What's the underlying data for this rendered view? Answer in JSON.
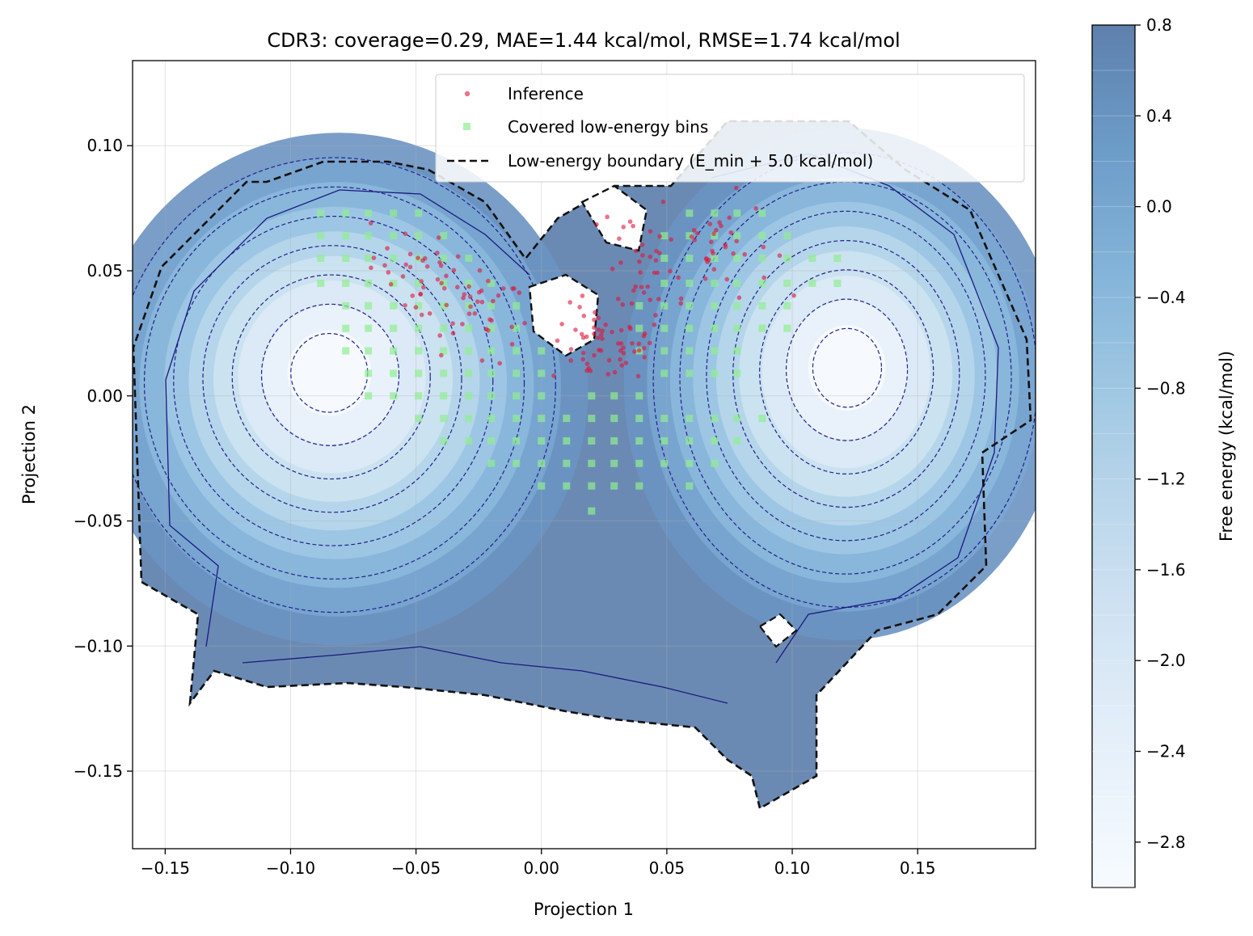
{
  "chart_data": {
    "type": "contour",
    "title": "CDR3: coverage=0.29, MAE=1.44 kcal/mol, RMSE=1.74 kcal/mol",
    "xlabel": "Projection 1",
    "ylabel": "Projection 2",
    "xlim": [
      -0.163,
      0.197
    ],
    "ylim": [
      -0.181,
      0.134
    ],
    "x_ticks": [
      -0.15,
      -0.1,
      -0.05,
      0.0,
      0.05,
      0.1,
      0.15
    ],
    "x_tick_labels": [
      "−0.15",
      "−0.10",
      "−0.05",
      "0.00",
      "0.05",
      "0.10",
      "0.15"
    ],
    "y_ticks": [
      0.1,
      0.05,
      0.0,
      -0.05,
      -0.1,
      -0.15
    ],
    "y_tick_labels": [
      "0.10",
      "0.05",
      "0.00",
      "−0.05",
      "−0.10",
      "−0.15"
    ],
    "grid": true,
    "legend_placement": "upper right",
    "legend": [
      {
        "label": "Inference",
        "marker": "dot",
        "color": "#dc143c"
      },
      {
        "label": "Covered low-energy bins",
        "marker": "square",
        "color": "#90ee90"
      },
      {
        "label": "Low-energy boundary (E_min + 5.0 kcal/mol)",
        "marker": "dashed-line",
        "color": "#000000"
      }
    ],
    "colorbar": {
      "label": "Free energy (kcal/mol)",
      "range": [
        -3.0,
        0.8
      ],
      "ticks": [
        0.8,
        0.4,
        0.0,
        -0.4,
        -0.8,
        -1.2,
        -1.6,
        -2.0,
        -2.4,
        -2.8
      ],
      "tick_labels": [
        "0.8",
        "0.4",
        "0.0",
        "−0.4",
        "−0.8",
        "−1.2",
        "−1.6",
        "−2.0",
        "−2.4",
        "−2.8"
      ],
      "colormap": "Blues"
    },
    "energy_basins": [
      {
        "center": [
          -0.085,
          0.01
        ],
        "min_energy": -3.0
      },
      {
        "center": [
          0.122,
          0.012
        ],
        "min_energy": -3.0
      }
    ],
    "inference_clusters": [
      {
        "center": [
          -0.035,
          0.04
        ],
        "spread": [
          0.016,
          0.01
        ],
        "count": 70
      },
      {
        "center": [
          0.022,
          0.02
        ],
        "spread": [
          0.009,
          0.008
        ],
        "count": 45
      },
      {
        "center": [
          0.038,
          0.045
        ],
        "spread": [
          0.007,
          0.022
        ],
        "count": 45
      },
      {
        "center": [
          0.068,
          0.06
        ],
        "spread": [
          0.012,
          0.01
        ],
        "count": 40
      }
    ],
    "covered_bins": {
      "x_step": 0.0098,
      "y_step": 0.0092,
      "points": [
        [
          -0.088,
          0.073
        ],
        [
          -0.078,
          0.073
        ],
        [
          -0.069,
          0.073
        ],
        [
          -0.059,
          0.073
        ],
        [
          -0.049,
          0.073
        ],
        [
          -0.088,
          0.064
        ],
        [
          -0.078,
          0.064
        ],
        [
          -0.069,
          0.064
        ],
        [
          -0.059,
          0.064
        ],
        [
          -0.049,
          0.064
        ],
        [
          -0.039,
          0.064
        ],
        [
          -0.088,
          0.055
        ],
        [
          -0.078,
          0.055
        ],
        [
          -0.069,
          0.055
        ],
        [
          -0.059,
          0.055
        ],
        [
          -0.049,
          0.055
        ],
        [
          -0.039,
          0.055
        ],
        [
          -0.029,
          0.055
        ],
        [
          -0.088,
          0.045
        ],
        [
          -0.078,
          0.045
        ],
        [
          -0.069,
          0.045
        ],
        [
          -0.059,
          0.045
        ],
        [
          -0.049,
          0.045
        ],
        [
          -0.039,
          0.045
        ],
        [
          -0.029,
          0.045
        ],
        [
          -0.02,
          0.045
        ],
        [
          -0.078,
          0.036
        ],
        [
          -0.069,
          0.036
        ],
        [
          -0.059,
          0.036
        ],
        [
          -0.049,
          0.036
        ],
        [
          -0.039,
          0.036
        ],
        [
          -0.029,
          0.036
        ],
        [
          -0.02,
          0.036
        ],
        [
          -0.01,
          0.036
        ],
        [
          -0.078,
          0.027
        ],
        [
          -0.069,
          0.027
        ],
        [
          -0.059,
          0.027
        ],
        [
          -0.049,
          0.027
        ],
        [
          -0.039,
          0.027
        ],
        [
          -0.029,
          0.027
        ],
        [
          -0.02,
          0.027
        ],
        [
          -0.01,
          0.027
        ],
        [
          -0.078,
          0.018
        ],
        [
          -0.069,
          0.018
        ],
        [
          -0.059,
          0.018
        ],
        [
          -0.049,
          0.018
        ],
        [
          -0.039,
          0.018
        ],
        [
          -0.029,
          0.018
        ],
        [
          -0.02,
          0.018
        ],
        [
          -0.01,
          0.018
        ],
        [
          0.0,
          0.018
        ],
        [
          -0.069,
          0.009
        ],
        [
          -0.059,
          0.009
        ],
        [
          -0.049,
          0.009
        ],
        [
          -0.039,
          0.009
        ],
        [
          -0.029,
          0.009
        ],
        [
          -0.02,
          0.009
        ],
        [
          -0.01,
          0.009
        ],
        [
          0.0,
          0.009
        ],
        [
          -0.069,
          0.0
        ],
        [
          -0.059,
          0.0
        ],
        [
          -0.049,
          0.0
        ],
        [
          -0.039,
          0.0
        ],
        [
          -0.029,
          0.0
        ],
        [
          -0.02,
          0.0
        ],
        [
          -0.01,
          0.0
        ],
        [
          0.0,
          0.0
        ],
        [
          0.02,
          0.0
        ],
        [
          0.029,
          0.0
        ],
        [
          0.039,
          0.0
        ],
        [
          -0.049,
          -0.009
        ],
        [
          -0.039,
          -0.009
        ],
        [
          -0.029,
          -0.009
        ],
        [
          -0.02,
          -0.009
        ],
        [
          -0.01,
          -0.009
        ],
        [
          0.0,
          -0.009
        ],
        [
          0.01,
          -0.009
        ],
        [
          0.02,
          -0.009
        ],
        [
          0.029,
          -0.009
        ],
        [
          0.039,
          -0.009
        ],
        [
          0.049,
          -0.009
        ],
        [
          0.059,
          -0.009
        ],
        [
          0.069,
          -0.009
        ],
        [
          0.078,
          -0.009
        ],
        [
          0.088,
          -0.009
        ],
        [
          -0.039,
          -0.018
        ],
        [
          -0.029,
          -0.018
        ],
        [
          -0.02,
          -0.018
        ],
        [
          -0.01,
          -0.018
        ],
        [
          0.0,
          -0.018
        ],
        [
          0.01,
          -0.018
        ],
        [
          0.02,
          -0.018
        ],
        [
          0.029,
          -0.018
        ],
        [
          0.039,
          -0.018
        ],
        [
          0.049,
          -0.018
        ],
        [
          0.059,
          -0.018
        ],
        [
          0.069,
          -0.018
        ],
        [
          0.078,
          -0.018
        ],
        [
          -0.02,
          -0.027
        ],
        [
          -0.01,
          -0.027
        ],
        [
          0.0,
          -0.027
        ],
        [
          0.01,
          -0.027
        ],
        [
          0.02,
          -0.027
        ],
        [
          0.029,
          -0.027
        ],
        [
          0.039,
          -0.027
        ],
        [
          0.049,
          -0.027
        ],
        [
          0.059,
          -0.027
        ],
        [
          0.069,
          -0.027
        ],
        [
          0.0,
          -0.036
        ],
        [
          0.01,
          -0.036
        ],
        [
          0.02,
          -0.036
        ],
        [
          0.029,
          -0.036
        ],
        [
          0.039,
          -0.036
        ],
        [
          0.059,
          -0.036
        ],
        [
          0.02,
          -0.046
        ],
        [
          0.059,
          0.073
        ],
        [
          0.069,
          0.073
        ],
        [
          0.078,
          0.073
        ],
        [
          0.088,
          0.073
        ],
        [
          0.049,
          0.064
        ],
        [
          0.059,
          0.064
        ],
        [
          0.069,
          0.064
        ],
        [
          0.078,
          0.064
        ],
        [
          0.088,
          0.064
        ],
        [
          0.098,
          0.064
        ],
        [
          0.049,
          0.055
        ],
        [
          0.059,
          0.055
        ],
        [
          0.069,
          0.055
        ],
        [
          0.078,
          0.055
        ],
        [
          0.088,
          0.055
        ],
        [
          0.098,
          0.055
        ],
        [
          0.108,
          0.055
        ],
        [
          0.118,
          0.055
        ],
        [
          0.049,
          0.045
        ],
        [
          0.059,
          0.045
        ],
        [
          0.069,
          0.045
        ],
        [
          0.078,
          0.045
        ],
        [
          0.088,
          0.045
        ],
        [
          0.098,
          0.045
        ],
        [
          0.108,
          0.045
        ],
        [
          0.118,
          0.045
        ],
        [
          0.039,
          0.036
        ],
        [
          0.049,
          0.036
        ],
        [
          0.059,
          0.036
        ],
        [
          0.069,
          0.036
        ],
        [
          0.078,
          0.036
        ],
        [
          0.088,
          0.036
        ],
        [
          0.098,
          0.036
        ],
        [
          0.039,
          0.027
        ],
        [
          0.049,
          0.027
        ],
        [
          0.059,
          0.027
        ],
        [
          0.069,
          0.027
        ],
        [
          0.078,
          0.027
        ],
        [
          0.088,
          0.027
        ],
        [
          0.098,
          0.027
        ],
        [
          0.039,
          0.018
        ],
        [
          0.049,
          0.018
        ],
        [
          0.059,
          0.018
        ],
        [
          0.069,
          0.018
        ],
        [
          0.078,
          0.018
        ],
        [
          0.049,
          0.009
        ],
        [
          0.059,
          0.009
        ],
        [
          0.069,
          0.009
        ],
        [
          0.078,
          0.009
        ]
      ]
    }
  },
  "colors": {
    "colormap_light": "#f7fbff",
    "colormap_dark": "#4f6e9c",
    "inference": "#dc143c",
    "covered": "#90ee90",
    "boundary": "#111111",
    "contour_solid": "#1a1a80",
    "contour_dashed": "#22228a"
  }
}
